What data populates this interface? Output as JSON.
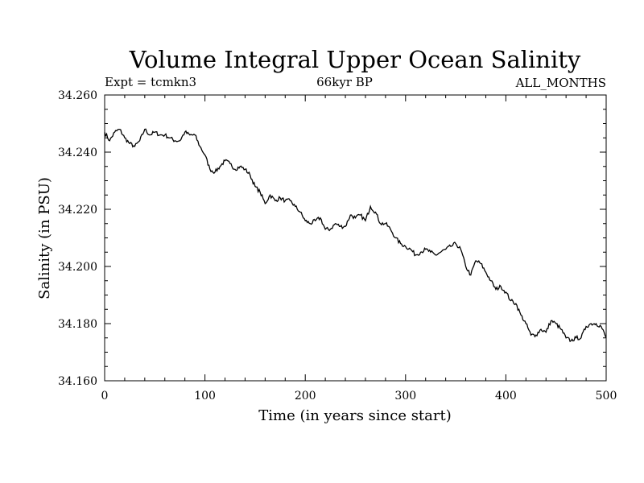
{
  "chart_data": {
    "type": "line",
    "title": "Volume Integral Upper Ocean Salinity",
    "subtitle_left": "Expt = tcmkn3",
    "subtitle_center": "66kyr BP",
    "subtitle_right": "ALL_MONTHS",
    "xlabel": "Time (in years since start)",
    "ylabel": "Salinity (in PSU)",
    "xlim": [
      0,
      500
    ],
    "ylim": [
      34.16,
      34.26
    ],
    "xticks": [
      "0",
      "100",
      "200",
      "300",
      "400",
      "500"
    ],
    "yticks": [
      "34.160",
      "34.180",
      "34.200",
      "34.220",
      "34.240",
      "34.260"
    ],
    "grid": false,
    "line_color": "#000000",
    "series": [
      {
        "x": [
          0,
          5,
          10,
          15,
          20,
          25,
          30,
          35,
          40,
          45,
          50,
          55,
          60,
          65,
          70,
          75,
          80,
          85,
          90,
          95,
          100,
          105,
          110,
          115,
          120,
          125,
          130,
          135,
          140,
          145,
          150,
          155,
          160,
          165,
          170,
          175,
          180,
          185,
          190,
          195,
          200,
          205,
          210,
          215,
          220,
          225,
          230,
          235,
          240,
          245,
          250,
          255,
          260,
          265,
          270,
          275,
          280,
          285,
          290,
          295,
          300,
          305,
          310,
          315,
          320,
          325,
          330,
          335,
          340,
          345,
          350,
          355,
          360,
          365,
          370,
          375,
          380,
          385,
          390,
          395,
          400,
          405,
          410,
          415,
          420,
          425,
          430,
          435,
          440,
          445,
          450,
          455,
          460,
          465,
          470,
          475,
          480,
          485,
          490,
          495,
          500
        ],
        "y": [
          34.247,
          34.244,
          34.247,
          34.248,
          34.245,
          34.243,
          34.242,
          34.244,
          34.248,
          34.246,
          34.247,
          34.246,
          34.246,
          34.245,
          34.244,
          34.244,
          34.247,
          34.246,
          34.246,
          34.242,
          34.239,
          34.234,
          34.233,
          34.235,
          34.237,
          34.236,
          34.234,
          34.235,
          34.234,
          34.232,
          34.228,
          34.226,
          34.222,
          34.225,
          34.223,
          34.224,
          34.223,
          34.223,
          34.221,
          34.219,
          34.216,
          34.215,
          34.216,
          34.217,
          34.213,
          34.213,
          34.215,
          34.214,
          34.214,
          34.218,
          34.217,
          34.218,
          34.216,
          34.221,
          34.219,
          34.215,
          34.215,
          34.213,
          34.21,
          34.208,
          34.207,
          34.206,
          34.204,
          34.205,
          34.206,
          34.205,
          34.204,
          34.205,
          34.206,
          34.207,
          34.208,
          34.206,
          34.2,
          34.197,
          34.202,
          34.201,
          34.198,
          34.195,
          34.192,
          34.193,
          34.191,
          34.188,
          34.187,
          34.183,
          34.18,
          34.176,
          34.176,
          34.178,
          34.177,
          34.181,
          34.18,
          34.178,
          34.175,
          34.174,
          34.175,
          34.175,
          34.179,
          34.18,
          34.18,
          34.179,
          34.175
        ]
      }
    ]
  }
}
